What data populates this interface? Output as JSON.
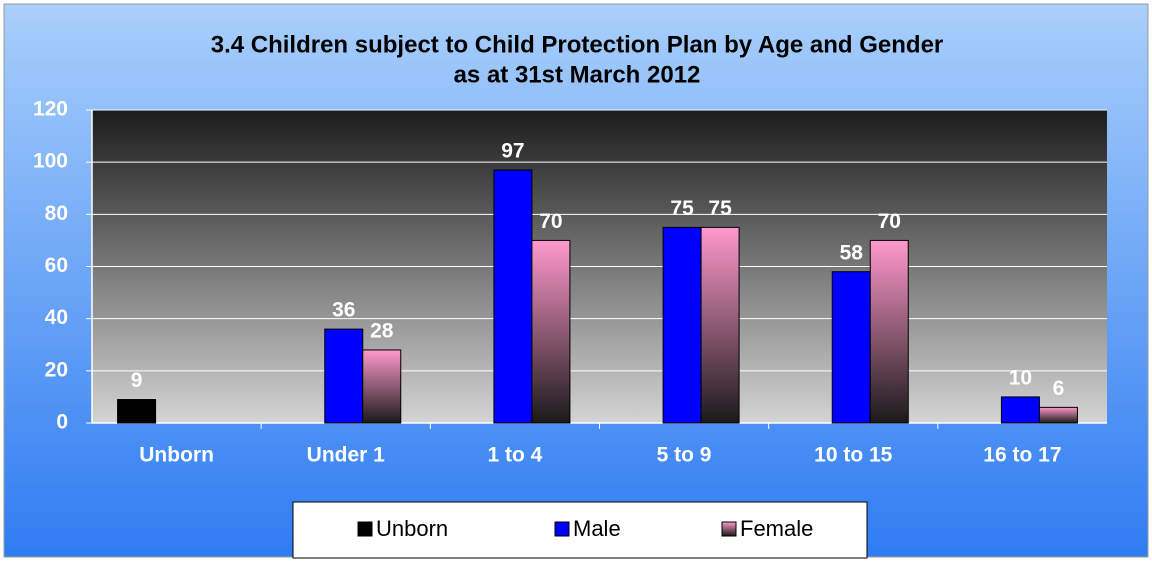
{
  "chart_data": {
    "type": "bar",
    "title": "3.4 Children subject to Child Protection Plan by Age and Gender",
    "subtitle": "as at 31st March 2012",
    "categories": [
      "Unborn",
      "Under 1",
      "1 to 4",
      "5 to 9",
      "10 to 15",
      "16 to 17"
    ],
    "series": [
      {
        "name": "Unborn",
        "color": "#000000",
        "values": [
          9,
          null,
          null,
          null,
          null,
          null
        ]
      },
      {
        "name": "Male",
        "color": "#0000ff",
        "values": [
          null,
          36,
          97,
          75,
          58,
          10
        ]
      },
      {
        "name": "Female",
        "color": "#ff99cc",
        "values": [
          null,
          28,
          70,
          75,
          70,
          6
        ]
      }
    ],
    "ylim": [
      0,
      120
    ],
    "yticks": [
      0,
      20,
      40,
      60,
      80,
      100,
      120
    ],
    "grid": true,
    "legend": "bottom"
  }
}
